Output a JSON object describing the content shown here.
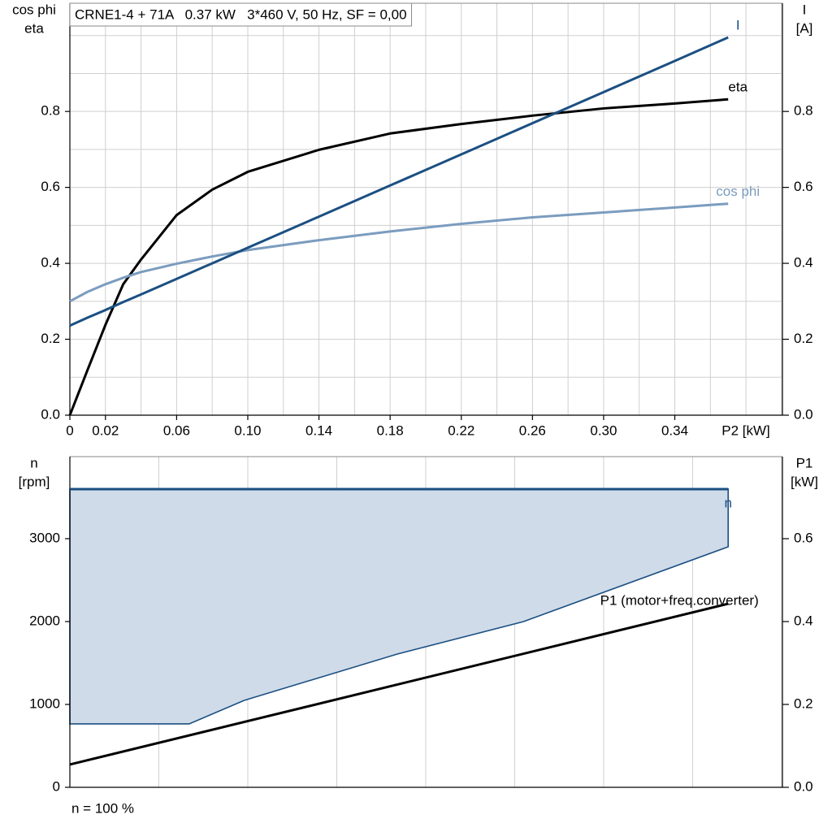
{
  "chart_data": [
    {
      "type": "line",
      "title": "CRNE1-4 + 71A   0.37 kW   3*460 V, 50 Hz, SF = 0,00",
      "x_label": "P2 [kW]",
      "y_label": [
        "cos phi",
        "eta"
      ],
      "y2_label": [
        "I",
        "[A]"
      ],
      "x": [
        0,
        0.01,
        0.02,
        0.03,
        0.04,
        0.06,
        0.08,
        0.1,
        0.14,
        0.18,
        0.22,
        0.26,
        0.3,
        0.34,
        0.37
      ],
      "xlim": [
        0,
        0.4005
      ],
      "xticks": [
        0,
        0.02,
        0.06,
        {
          "value": 0.1,
          "label": "0.10"
        },
        0.14,
        0.18,
        0.22,
        0.26,
        {
          "value": 0.3,
          "label": "0.30"
        },
        0.34
      ],
      "xgrid_step": 0.02,
      "ylim": [
        0,
        1.085
      ],
      "yticks": [
        {
          "value": 0,
          "label": "0.0"
        },
        0.2,
        0.4,
        0.6,
        0.8
      ],
      "ygrid_step": 0.1,
      "y2lim": [
        0,
        1.085
      ],
      "y2ticks": [
        {
          "value": 0,
          "label": "0.0"
        },
        0.2,
        0.4,
        0.6,
        0.8
      ],
      "series": [
        {
          "name": "eta",
          "color": "#000000",
          "values": [
            0,
            0.12,
            0.238,
            0.345,
            0.41,
            0.527,
            0.594,
            0.641,
            0.699,
            0.742,
            0.767,
            0.789,
            0.808,
            0.821,
            0.832
          ]
        },
        {
          "name": "cos phi",
          "color": "#7b9cbf",
          "values": [
            0.3,
            0.325,
            0.345,
            0.362,
            0.377,
            0.399,
            0.418,
            0.435,
            0.461,
            0.484,
            0.504,
            0.521,
            0.534,
            0.547,
            0.557
          ]
        },
        {
          "name": "I",
          "color": "#1b4f82",
          "axis": "y2",
          "values": [
            0.236,
            0.257,
            0.277,
            0.298,
            0.318,
            0.359,
            0.4,
            0.441,
            0.523,
            0.605,
            0.687,
            0.769,
            0.851,
            0.933,
            0.995
          ]
        }
      ]
    },
    {
      "type": "line",
      "y_label": [
        "n",
        "[rpm]"
      ],
      "y2_label": [
        "P1",
        "[kW]"
      ],
      "footer": "n = 100 %",
      "xlim": [
        0,
        0.4005
      ],
      "xgrid_step": 0.05,
      "ylim": [
        0,
        3990
      ],
      "yticks": [
        0,
        1000,
        2000,
        3000
      ],
      "y2lim": [
        0,
        0.798
      ],
      "y2ticks": [
        {
          "value": 0,
          "label": "0.0"
        },
        0.2,
        0.4,
        0.6
      ],
      "band": {
        "color": "#cfdbe8",
        "x": [
          0,
          0.067,
          0.098,
          0.184,
          0.255,
          0.37
        ],
        "lower": [
          765,
          765,
          1049,
          1608,
          2000,
          2902
        ],
        "upper": [
          3598,
          3598,
          3598,
          3598,
          3598,
          3598
        ]
      },
      "series": [
        {
          "name": "n",
          "color": "#1b4f82",
          "x": [
            0,
            0.37
          ],
          "values": [
            3598,
            3598
          ]
        },
        {
          "name": "P1 (motor+freq.converter)",
          "color": "#000000",
          "axis": "y2",
          "x": [
            0,
            0.37
          ],
          "values": [
            0.055,
            0.443
          ]
        }
      ]
    }
  ]
}
